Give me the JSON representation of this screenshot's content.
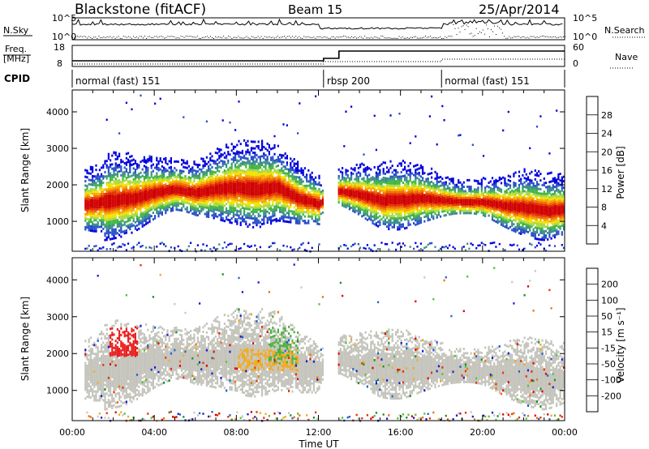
{
  "header": {
    "station": "Blackstone (fitACF)",
    "beam": "Beam 15",
    "date": "25/Apr/2014"
  },
  "summary_panels": {
    "nsky": {
      "label": "N.Sky",
      "ticks": [
        "10^5",
        "10^0"
      ]
    },
    "nsearch": {
      "label": "N.Search",
      "ticks": [
        "10^5",
        "10^0"
      ]
    },
    "freq": {
      "label_line1": "Freq.",
      "label_line2": "[MHz]",
      "ticks": [
        "18",
        "8"
      ]
    },
    "nave": {
      "label": "Nave",
      "ticks": [
        "60",
        "0"
      ]
    },
    "cpid": {
      "label": "CPID",
      "segments": [
        {
          "name": "normal (fast) 151",
          "start_hour": 0.0,
          "end_hour": 12.25
        },
        {
          "name": "rbsp 200",
          "start_hour": 12.25,
          "end_hour": 18.0
        },
        {
          "name": "normal (fast) 151",
          "start_hour": 18.0,
          "end_hour": 24.0
        }
      ]
    }
  },
  "colorbars": {
    "power": {
      "label": "Power [dB]",
      "ticks": [
        "28",
        "24",
        "20",
        "16",
        "12",
        "8",
        "4"
      ],
      "colors": [
        "#0000dd",
        "#2850c8",
        "#3c8c8c",
        "#3fb545",
        "#a6d94a",
        "#f2e200",
        "#f6a800",
        "#f06b00",
        "#e43000",
        "#d00000"
      ]
    },
    "velocity": {
      "label": "Velocity [m s⁻¹]",
      "ticks": [
        "200",
        "100",
        "50",
        "15",
        "-15",
        "-50",
        "-100",
        "-200"
      ],
      "colors": [
        "#1a1acc",
        "#2060d0",
        "#1d8d2a",
        "#55c03a",
        "#c8c8c0",
        "#c8c8c0",
        "#f0a820",
        "#f07000",
        "#e83000",
        "#dd0000"
      ]
    }
  },
  "chart_data": [
    {
      "type": "heatmap",
      "title": "Power",
      "ylabel": "Slant Range [km]",
      "xlabel": "Time UT",
      "x_ticks": [
        "00:00",
        "04:00",
        "08:00",
        "12:00",
        "16:00",
        "20:00",
        "00:00"
      ],
      "y_ticks": [
        "1000",
        "2000",
        "3000",
        "4000"
      ],
      "xlim_hours": [
        0,
        24
      ],
      "ylim_km": [
        180,
        4600
      ],
      "colorbar_range_db": [
        0,
        30
      ],
      "echo_band_center_km": [
        [
          0,
          1500
        ],
        [
          1,
          1550
        ],
        [
          2,
          1650
        ],
        [
          3,
          1700
        ],
        [
          4,
          1850
        ],
        [
          5,
          1950
        ],
        [
          6,
          1850
        ],
        [
          7,
          1950
        ],
        [
          8,
          2000
        ],
        [
          9,
          1950
        ],
        [
          10,
          2000
        ],
        [
          11,
          1700
        ],
        [
          12,
          1550
        ],
        [
          13,
          1900
        ],
        [
          14,
          1800
        ],
        [
          15,
          1650
        ],
        [
          16,
          1650
        ],
        [
          17,
          1700
        ],
        [
          18,
          1650
        ],
        [
          19,
          1600
        ],
        [
          20,
          1600
        ],
        [
          21,
          1500
        ],
        [
          22,
          1450
        ],
        [
          23,
          1350
        ],
        [
          24,
          1400
        ]
      ]
    },
    {
      "type": "heatmap",
      "title": "Velocity",
      "ylabel": "Slant Range [km]",
      "xlabel": "Time UT",
      "x_ticks": [
        "00:00",
        "04:00",
        "08:00",
        "12:00",
        "16:00",
        "20:00",
        "00:00"
      ],
      "y_ticks": [
        "1000",
        "2000",
        "3000",
        "4000"
      ],
      "xlim_hours": [
        0,
        24
      ],
      "ylim_km": [
        180,
        4600
      ],
      "colorbar_range_ms": [
        -250,
        250
      ]
    }
  ],
  "axis_label_x": "Time UT"
}
